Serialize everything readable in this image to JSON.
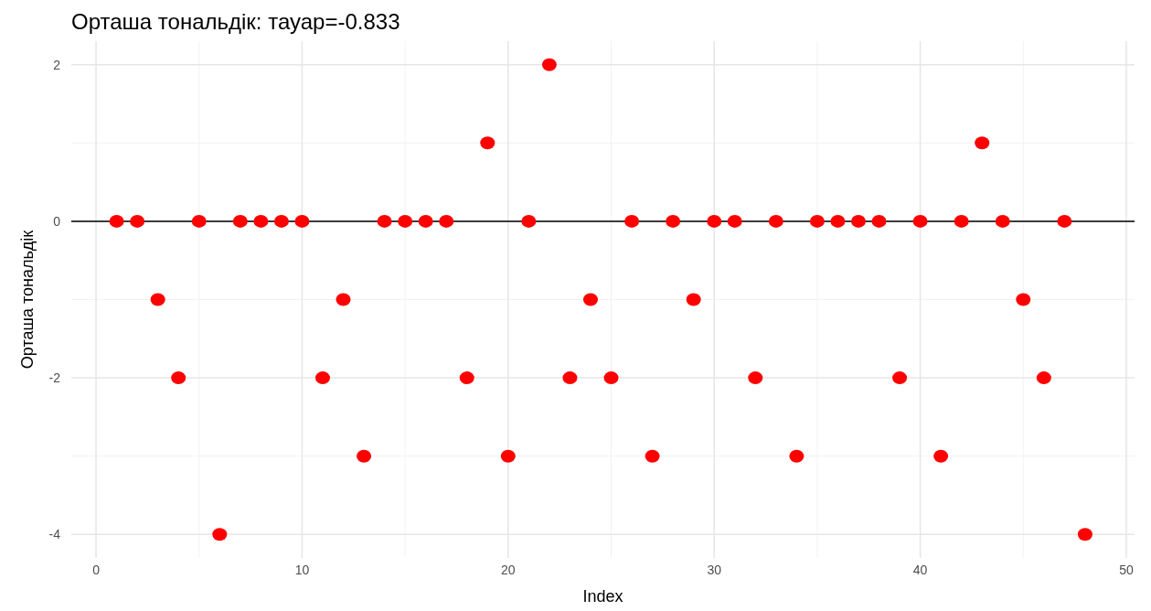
{
  "chart_data": {
    "type": "scatter",
    "title": "Орташа тональдік: тауар=-0.833",
    "xlabel": "Index",
    "ylabel": "Орташа тональдік",
    "x": [
      1,
      2,
      3,
      4,
      5,
      6,
      7,
      8,
      9,
      10,
      11,
      12,
      13,
      14,
      15,
      16,
      17,
      18,
      19,
      20,
      21,
      22,
      23,
      24,
      25,
      26,
      27,
      28,
      29,
      30,
      31,
      32,
      33,
      34,
      35,
      36,
      37,
      38,
      39,
      40,
      41,
      42,
      43,
      44,
      45,
      46,
      47,
      48
    ],
    "series": [
      {
        "color": "#ff0000",
        "values": [
          0,
          0,
          -1,
          -2,
          0,
          -4,
          0,
          0,
          0,
          0,
          -2,
          -1,
          -3,
          0,
          0,
          0,
          0,
          -2,
          1,
          -3,
          0,
          2,
          -2,
          -1,
          -2,
          0,
          -3,
          0,
          -1,
          0,
          0,
          -2,
          0,
          -3,
          0,
          0,
          0,
          0,
          -2,
          0,
          -3,
          0,
          1,
          0,
          -1,
          -2,
          0,
          -4
        ]
      }
    ],
    "xlim": [
      -1.2,
      50.4
    ],
    "ylim": [
      -4.3,
      2.3
    ],
    "xticks": [
      0,
      10,
      20,
      30,
      40,
      50
    ],
    "yticks": [
      -4,
      -2,
      0,
      2
    ],
    "ref_lines": [
      {
        "axis": "y",
        "value": 0,
        "color": "#000000"
      }
    ],
    "grid": true,
    "marker": "circle"
  }
}
